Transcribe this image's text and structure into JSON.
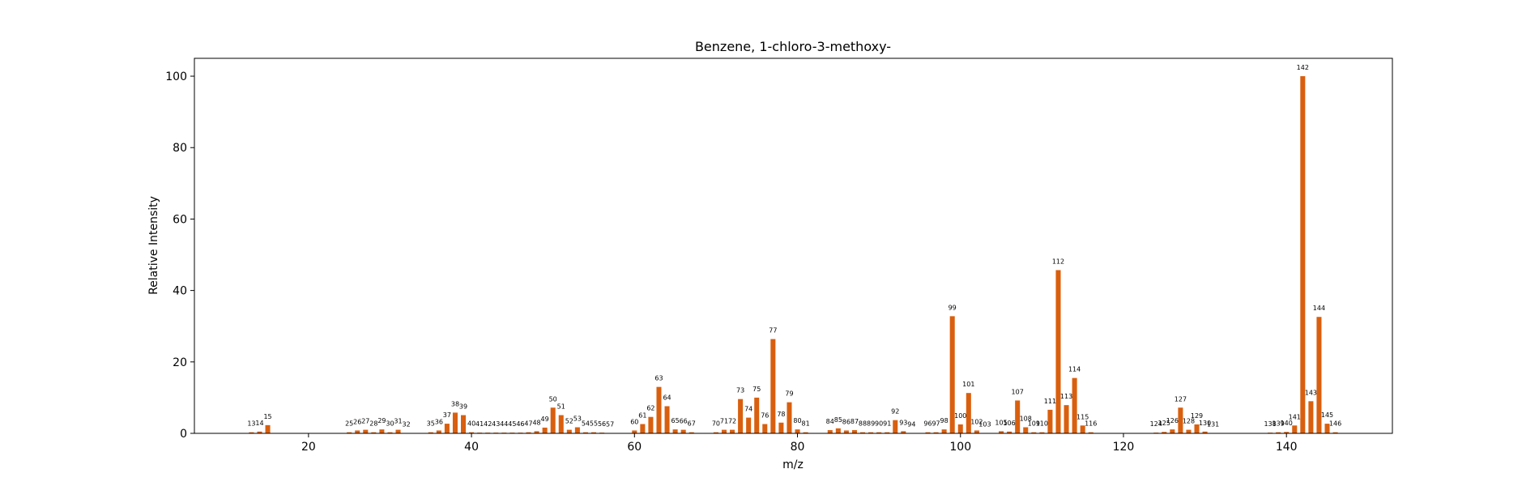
{
  "chart_data": {
    "type": "bar",
    "title": "Benzene, 1-chloro-3-methoxy-",
    "xlabel": "m/z",
    "ylabel": "Relative Intensity",
    "xlim": [
      6,
      153
    ],
    "ylim": [
      0,
      105
    ],
    "xticks": [
      20,
      40,
      60,
      80,
      100,
      120,
      140
    ],
    "yticks": [
      0,
      20,
      40,
      60,
      80,
      100
    ],
    "bar_color": "#d95f0e",
    "grid": false,
    "x": [
      13,
      14,
      15,
      25,
      26,
      27,
      28,
      29,
      30,
      31,
      32,
      35,
      36,
      37,
      38,
      39,
      40,
      41,
      42,
      43,
      44,
      45,
      46,
      47,
      48,
      49,
      50,
      51,
      52,
      53,
      54,
      55,
      56,
      57,
      60,
      61,
      62,
      63,
      64,
      65,
      66,
      67,
      70,
      71,
      72,
      73,
      74,
      75,
      76,
      77,
      78,
      79,
      80,
      81,
      84,
      85,
      86,
      87,
      88,
      89,
      90,
      91,
      92,
      93,
      94,
      96,
      97,
      98,
      99,
      100,
      101,
      102,
      103,
      105,
      106,
      107,
      108,
      109,
      110,
      111,
      112,
      113,
      114,
      115,
      116,
      124,
      125,
      126,
      127,
      128,
      129,
      130,
      131,
      138,
      139,
      140,
      141,
      142,
      143,
      144,
      145,
      146
    ],
    "values": [
      0.3,
      0.5,
      2.3,
      0.3,
      0.8,
      1.0,
      0.3,
      1.1,
      0.3,
      1.0,
      0.1,
      0.3,
      0.8,
      2.7,
      5.8,
      5.1,
      0.3,
      0.2,
      0.2,
      0.2,
      0.2,
      0.2,
      0.2,
      0.3,
      0.6,
      1.6,
      7.2,
      5.1,
      1.0,
      1.7,
      0.3,
      0.3,
      0.2,
      0.1,
      0.8,
      2.6,
      4.6,
      13.0,
      7.6,
      1.1,
      1.0,
      0.3,
      0.3,
      1.0,
      1.0,
      9.6,
      4.4,
      10.0,
      2.6,
      26.4,
      3.0,
      8.7,
      1.1,
      0.3,
      0.9,
      1.4,
      0.8,
      0.9,
      0.3,
      0.3,
      0.3,
      0.3,
      3.7,
      0.6,
      0.1,
      0.3,
      0.3,
      1.1,
      32.8,
      2.5,
      11.3,
      0.8,
      0.1,
      0.6,
      0.5,
      9.2,
      1.7,
      0.3,
      0.3,
      6.6,
      45.7,
      7.9,
      15.5,
      2.2,
      0.3,
      0.2,
      0.4,
      1.1,
      7.2,
      1.0,
      2.5,
      0.5,
      0.1,
      0.2,
      0.3,
      0.4,
      2.2,
      100.0,
      9.0,
      32.6,
      2.7,
      0.3
    ]
  }
}
